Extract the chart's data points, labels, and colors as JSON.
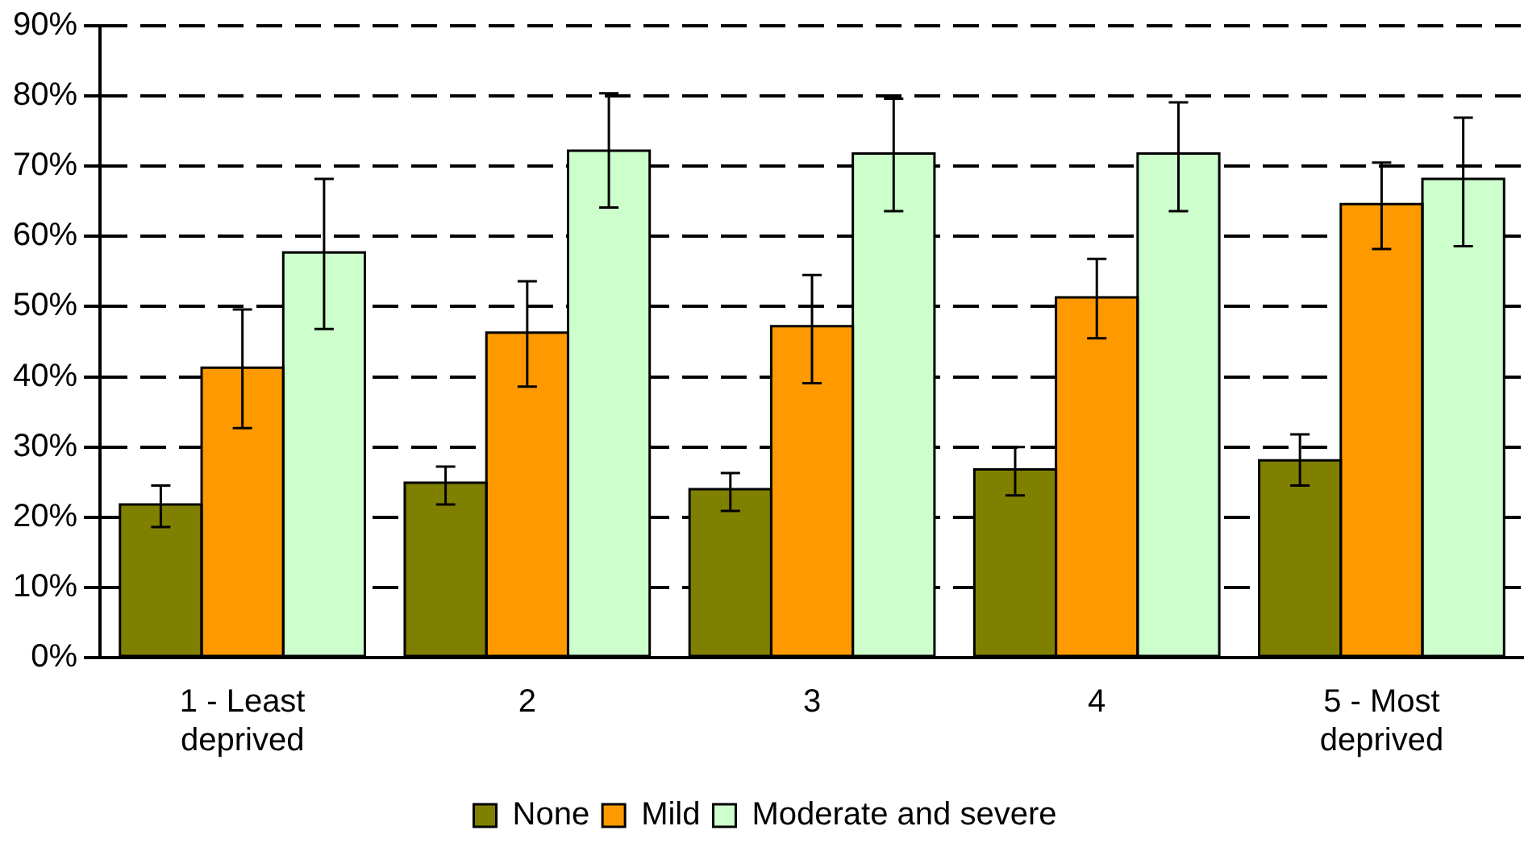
{
  "chart_data": {
    "type": "bar",
    "categories": [
      "1 - Least deprived",
      "2",
      "3",
      "4",
      "5 - Most deprived"
    ],
    "series": [
      {
        "name": "None",
        "color": "#808000",
        "values": [
          21.8,
          24.9,
          24.0,
          26.8,
          28.1
        ],
        "errors": [
          [
            18.6,
            24.5
          ],
          [
            21.8,
            27.2
          ],
          [
            20.9,
            26.3
          ],
          [
            23.1,
            30.0
          ],
          [
            24.5,
            31.8
          ]
        ]
      },
      {
        "name": "Mild",
        "color": "#ff9900",
        "values": [
          41.3,
          46.3,
          47.2,
          51.3,
          64.6
        ],
        "errors": [
          [
            32.7,
            49.6
          ],
          [
            38.6,
            53.6
          ],
          [
            39.1,
            54.5
          ],
          [
            45.5,
            56.8
          ],
          [
            58.2,
            70.5
          ]
        ]
      },
      {
        "name": "Moderate and severe",
        "color": "#ccffcc",
        "values": [
          57.7,
          72.2,
          71.8,
          71.8,
          68.2
        ],
        "errors": [
          [
            46.8,
            68.2
          ],
          [
            64.1,
            80.4
          ],
          [
            63.6,
            79.6
          ],
          [
            63.6,
            79.1
          ],
          [
            58.6,
            76.9
          ]
        ]
      }
    ],
    "ylim": [
      0,
      90
    ],
    "yticks": [
      {
        "value": 0,
        "label": "0%"
      },
      {
        "value": 10,
        "label": "10%"
      },
      {
        "value": 20,
        "label": "20%"
      },
      {
        "value": 30,
        "label": "30%"
      },
      {
        "value": 40,
        "label": "40%"
      },
      {
        "value": 50,
        "label": "50%"
      },
      {
        "value": 60,
        "label": "60%"
      },
      {
        "value": 70,
        "label": "70%"
      },
      {
        "value": 80,
        "label": "80%"
      },
      {
        "value": 90,
        "label": "90%"
      }
    ],
    "grid": "y",
    "legend": "bottom"
  }
}
